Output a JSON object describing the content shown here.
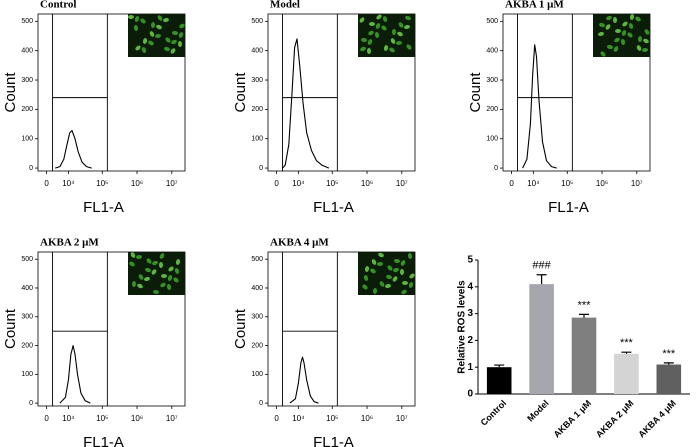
{
  "chart_data": [
    {
      "type": "line",
      "title": "Control",
      "xlabel": "FL1-A",
      "ylabel": "Count",
      "xscale": "biexponential",
      "xlim": [
        -3000,
        24000000
      ],
      "ylim": [
        -10,
        525
      ],
      "xticks": [
        0,
        {
          "value": 10000,
          "label": "10⁴"
        },
        {
          "value": 100000,
          "label": "10⁵"
        },
        {
          "value": 1000000,
          "label": "10⁶"
        },
        {
          "value": 10000000,
          "label": "10⁷"
        }
      ],
      "yticks": [
        0,
        100,
        200,
        300,
        400,
        500
      ],
      "color": "#000000",
      "gate_x": [
        2000,
        140000
      ],
      "gate_y": 240,
      "x": [
        3000,
        5000,
        7000,
        9000,
        11000,
        13000,
        16000,
        20000,
        26000,
        35000,
        50000
      ],
      "values": [
        0,
        5,
        30,
        80,
        120,
        128,
        100,
        55,
        20,
        5,
        0
      ]
    },
    {
      "type": "line",
      "title": "Model",
      "xlabel": "FL1-A",
      "ylabel": "Count",
      "xscale": "biexponential",
      "xlim": [
        -3000,
        24000000
      ],
      "ylim": [
        -10,
        525
      ],
      "xticks": [
        0,
        {
          "value": 10000,
          "label": "10⁴"
        },
        {
          "value": 100000,
          "label": "10⁵"
        },
        {
          "value": 1000000,
          "label": "10⁶"
        },
        {
          "value": 10000000,
          "label": "10⁷"
        }
      ],
      "yticks": [
        0,
        100,
        200,
        300,
        400,
        500
      ],
      "color": "#000000",
      "gate_x": [
        2000,
        140000
      ],
      "gate_y": 240,
      "x": [
        2000,
        3000,
        4500,
        6000,
        7500,
        9000,
        11000,
        14000,
        18000,
        25000,
        35000,
        50000,
        80000
      ],
      "values": [
        0,
        10,
        80,
        250,
        410,
        440,
        350,
        220,
        120,
        60,
        25,
        10,
        0
      ]
    },
    {
      "type": "line",
      "title": "AKBA 1 μM",
      "xlabel": "FL1-A",
      "ylabel": "Count",
      "xscale": "biexponential",
      "xlim": [
        -3000,
        24000000
      ],
      "ylim": [
        -10,
        525
      ],
      "xticks": [
        0,
        {
          "value": 10000,
          "label": "10⁴"
        },
        {
          "value": 100000,
          "label": "10⁵"
        },
        {
          "value": 1000000,
          "label": "10⁶"
        },
        {
          "value": 10000000,
          "label": "10⁷"
        }
      ],
      "yticks": [
        0,
        100,
        200,
        300,
        400,
        500
      ],
      "color": "#000000",
      "gate_x": [
        2000,
        140000
      ],
      "gate_y": 240,
      "x": [
        4000,
        6000,
        8000,
        9500,
        11000,
        12500,
        15000,
        19000,
        25000,
        35000,
        50000
      ],
      "values": [
        0,
        30,
        150,
        320,
        420,
        380,
        230,
        90,
        25,
        5,
        0
      ]
    },
    {
      "type": "line",
      "title": "AKBA 2 μM",
      "xlabel": "FL1-A",
      "ylabel": "Count",
      "xscale": "biexponential",
      "xlim": [
        -3000,
        24000000
      ],
      "ylim": [
        -10,
        525
      ],
      "xticks": [
        0,
        {
          "value": 10000,
          "label": "10⁴"
        },
        {
          "value": 100000,
          "label": "10⁵"
        },
        {
          "value": 1000000,
          "label": "10⁶"
        },
        {
          "value": 10000000,
          "label": "10⁷"
        }
      ],
      "yticks": [
        0,
        100,
        200,
        300,
        400,
        500
      ],
      "color": "#000000",
      "gate_x": [
        2000,
        140000
      ],
      "gate_y": 250,
      "x": [
        5000,
        8000,
        10000,
        12000,
        14000,
        16000,
        19000,
        24000,
        32000,
        45000
      ],
      "values": [
        0,
        20,
        80,
        170,
        200,
        170,
        100,
        35,
        8,
        0
      ]
    },
    {
      "type": "line",
      "title": "AKBA 4 μM",
      "xlabel": "FL1-A",
      "ylabel": "Count",
      "xscale": "biexponential",
      "xlim": [
        -3000,
        24000000
      ],
      "ylim": [
        -10,
        525
      ],
      "xticks": [
        0,
        {
          "value": 10000,
          "label": "10⁴"
        },
        {
          "value": 100000,
          "label": "10⁵"
        },
        {
          "value": 1000000,
          "label": "10⁶"
        },
        {
          "value": 10000000,
          "label": "10⁷"
        }
      ],
      "yticks": [
        0,
        100,
        200,
        300,
        400,
        500
      ],
      "color": "#000000",
      "gate_x": [
        2000,
        140000
      ],
      "gate_y": 250,
      "x": [
        5000,
        8000,
        10000,
        12000,
        13500,
        15000,
        18000,
        23000,
        30000,
        40000
      ],
      "values": [
        0,
        15,
        70,
        140,
        160,
        140,
        80,
        25,
        5,
        0
      ]
    },
    {
      "type": "bar",
      "ylabel": "Relative ROS levels",
      "categories": [
        "Control",
        "Model",
        "AKBA 1 μM",
        "AKBA 2 μM",
        "AKBA 4 μM"
      ],
      "values": [
        1.0,
        4.1,
        2.85,
        1.5,
        1.1
      ],
      "errors": [
        0.08,
        0.35,
        0.12,
        0.06,
        0.06
      ],
      "annotations": [
        null,
        "###",
        "***",
        "***",
        "***"
      ],
      "colors": [
        "#000000",
        "#a6a6ae",
        "#7f7f7f",
        "#d4d4d4",
        "#606060"
      ],
      "ylim": [
        0,
        5
      ],
      "yticks": [
        0,
        1,
        2,
        3,
        4,
        5
      ]
    }
  ]
}
